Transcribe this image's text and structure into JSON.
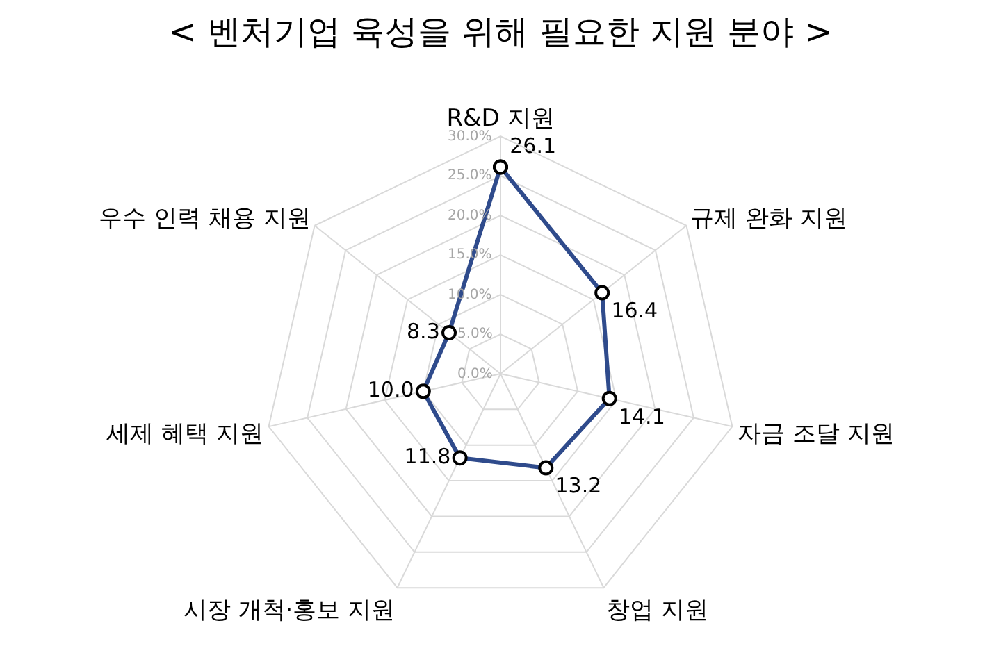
{
  "chart_data": {
    "type": "radar",
    "title": "< 벤처기업 육성을 위해 필요한 지원 분야 >",
    "categories": [
      "R&D 지원",
      "규제 완화 지원",
      "자금 조달 지원",
      "창업 지원",
      "시장 개척·홍보 지원",
      "세제 혜택 지원",
      "우수 인력 채용 지원"
    ],
    "series": [
      {
        "color": "#2f4b8c",
        "values": [
          26.1,
          16.4,
          14.1,
          13.2,
          11.8,
          10.0,
          8.3
        ]
      }
    ],
    "ylim": [
      0,
      30
    ],
    "yticks": [
      {
        "value": 0,
        "label": "0.0%"
      },
      {
        "value": 5,
        "label": "5.0%"
      },
      {
        "value": 10,
        "label": "10.0%"
      },
      {
        "value": 15,
        "label": "15.0%"
      },
      {
        "value": 20,
        "label": "20.0%"
      },
      {
        "value": 25,
        "label": "25.0%"
      },
      {
        "value": 30,
        "label": "30.0%"
      }
    ],
    "value_labels": [
      "26.1",
      "16.4",
      "14.1",
      "13.2",
      "11.8",
      "10.0",
      "8.3"
    ],
    "marker": "circle",
    "grid": true
  }
}
